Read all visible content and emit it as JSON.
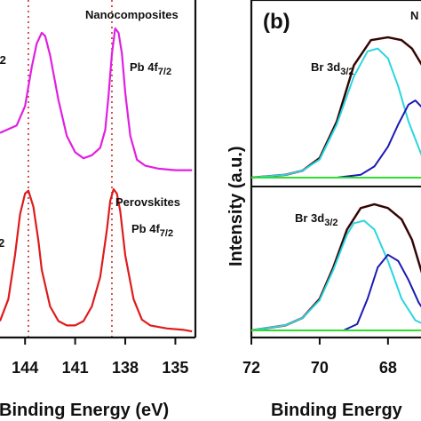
{
  "chart_data": [
    {
      "type": "line",
      "panel_label": "",
      "xlabel": "Binding Energy (eV)",
      "ylabel": "",
      "xlim": [
        145.5,
        133.8
      ],
      "x_reversed": true,
      "xticks": [
        144,
        141,
        138,
        135
      ],
      "xtick_labels": [
        "144",
        "141",
        "138",
        "135"
      ],
      "reference_lines": [
        143.8,
        138.8
      ],
      "reference_line_color": "#cc2a2a",
      "series": [
        {
          "name": "Nanocomposites",
          "color": "#e020e0",
          "x": [
            145.5,
            144.5,
            144.0,
            143.6,
            143.3,
            143.0,
            142.8,
            142.5,
            142.0,
            141.5,
            141.0,
            140.5,
            140.0,
            139.5,
            139.2,
            139.0,
            138.8,
            138.6,
            138.4,
            138.2,
            138.0,
            137.7,
            137.3,
            136.8,
            136.0,
            135.0,
            134.0
          ],
          "y": [
            0.3,
            0.35,
            0.48,
            0.74,
            0.9,
            0.97,
            0.95,
            0.82,
            0.52,
            0.28,
            0.17,
            0.13,
            0.15,
            0.2,
            0.32,
            0.55,
            0.83,
            1.0,
            0.97,
            0.83,
            0.57,
            0.28,
            0.12,
            0.08,
            0.06,
            0.05,
            0.05
          ]
        },
        {
          "name": "Perovskites",
          "color": "#dd1c1c",
          "x": [
            145.5,
            145.0,
            144.6,
            144.3,
            144.0,
            143.8,
            143.5,
            143.2,
            143.0,
            142.5,
            142.0,
            141.5,
            141.0,
            140.5,
            140.0,
            139.5,
            139.1,
            138.9,
            138.7,
            138.5,
            138.3,
            138.0,
            137.5,
            137.0,
            136.5,
            135.5,
            134.5,
            134.0
          ],
          "y": [
            0.1,
            0.25,
            0.55,
            0.83,
            0.97,
            0.99,
            0.88,
            0.65,
            0.45,
            0.2,
            0.1,
            0.07,
            0.07,
            0.1,
            0.2,
            0.4,
            0.72,
            0.92,
            1.0,
            0.97,
            0.85,
            0.55,
            0.25,
            0.11,
            0.07,
            0.05,
            0.04,
            0.03
          ]
        }
      ],
      "annotations": {
        "nano_title": "Nanocomposites",
        "nano_peak_left": "/2",
        "pero_title": "Perovskites",
        "pero_peak_left": "2",
        "peak_right_main": "Pb 4f",
        "peak_right_sub": "7/2"
      }
    },
    {
      "type": "line",
      "panel_label": "(b)",
      "corner_text": "N",
      "xlabel": "Binding Energy",
      "ylabel": "Intensity (a.u.)",
      "xlim": [
        72,
        66.8
      ],
      "x_reversed": true,
      "xticks": [
        72,
        70,
        68
      ],
      "xtick_labels": [
        "72",
        "70",
        "68"
      ],
      "top": {
        "label_main": "Br 3d",
        "label_sub": "3/2",
        "series": [
          {
            "name": "",
            "color": "#e01010",
            "x": [
              72,
              71,
              70.5,
              70,
              69.5,
              69.0,
              68.5,
              68.0,
              67.6,
              67.3,
              67.0,
              66.8
            ],
            "y": [
              0.0,
              0.02,
              0.05,
              0.14,
              0.4,
              0.8,
              0.98,
              1.0,
              0.98,
              0.92,
              0.8,
              0.7
            ]
          },
          {
            "name": "",
            "color": "#111111",
            "x": [
              72,
              71,
              70.5,
              70,
              69.5,
              69.0,
              68.5,
              68.0,
              67.6,
              67.3,
              67.0,
              66.8
            ],
            "y": [
              0.0,
              0.02,
              0.05,
              0.14,
              0.4,
              0.8,
              0.98,
              1.0,
              0.98,
              0.92,
              0.8,
              0.7
            ]
          },
          {
            "name": "",
            "color": "#29d6e0",
            "x": [
              72,
              71,
              70.5,
              70,
              69.5,
              69.0,
              68.6,
              68.3,
              68.0,
              67.7,
              67.4,
              67.0,
              66.8
            ],
            "y": [
              0.0,
              0.02,
              0.05,
              0.13,
              0.38,
              0.72,
              0.9,
              0.92,
              0.85,
              0.65,
              0.4,
              0.15,
              0.07
            ]
          },
          {
            "name": "",
            "color": "#1a1ab4",
            "x": [
              72,
              69.5,
              68.8,
              68.4,
              68.0,
              67.7,
              67.4,
              67.2,
              67.0,
              66.8
            ],
            "y": [
              0.0,
              0.0,
              0.02,
              0.08,
              0.22,
              0.38,
              0.52,
              0.55,
              0.5,
              0.42
            ]
          },
          {
            "name": "",
            "color": "#2ee02e",
            "x": [
              72,
              66.8
            ],
            "y": [
              0.0,
              0.0
            ]
          }
        ]
      },
      "bottom": {
        "label_main": "Br 3d",
        "label_sub": "3/2",
        "series": [
          {
            "name": "",
            "color": "#e01010",
            "x": [
              72,
              71,
              70.5,
              70,
              69.6,
              69.2,
              68.8,
              68.4,
              68.0,
              67.6,
              67.3,
              67.0,
              66.8
            ],
            "y": [
              0.0,
              0.04,
              0.1,
              0.25,
              0.5,
              0.8,
              0.97,
              1.0,
              0.97,
              0.88,
              0.72,
              0.45,
              0.3
            ]
          },
          {
            "name": "",
            "color": "#111111",
            "x": [
              72,
              71,
              70.5,
              70,
              69.6,
              69.2,
              68.8,
              68.4,
              68.0,
              67.6,
              67.3,
              67.0,
              66.8
            ],
            "y": [
              0.0,
              0.04,
              0.1,
              0.25,
              0.5,
              0.8,
              0.97,
              1.0,
              0.97,
              0.88,
              0.72,
              0.45,
              0.3
            ]
          },
          {
            "name": "",
            "color": "#29d6e0",
            "x": [
              72,
              71,
              70.5,
              70,
              69.6,
              69.2,
              69.0,
              68.7,
              68.4,
              68.0,
              67.6,
              67.2,
              66.8
            ],
            "y": [
              0.0,
              0.04,
              0.1,
              0.24,
              0.48,
              0.76,
              0.85,
              0.87,
              0.8,
              0.55,
              0.25,
              0.08,
              0.03
            ]
          },
          {
            "name": "",
            "color": "#1a1ab4",
            "x": [
              72,
              69.3,
              68.9,
              68.6,
              68.3,
              68.0,
              67.7,
              67.4,
              67.1,
              66.8
            ],
            "y": [
              0.0,
              0.0,
              0.05,
              0.25,
              0.5,
              0.6,
              0.55,
              0.4,
              0.22,
              0.1
            ]
          },
          {
            "name": "",
            "color": "#2ee02e",
            "x": [
              72,
              66.8
            ],
            "y": [
              0.0,
              0.0
            ]
          }
        ]
      }
    }
  ]
}
